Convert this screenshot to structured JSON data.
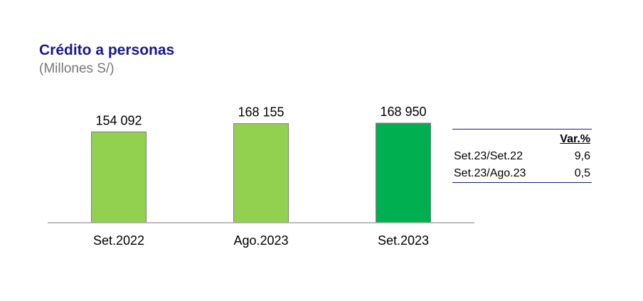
{
  "header": {
    "title": "Crédito a personas",
    "subtitle": "(Millones S/)"
  },
  "chart_data": {
    "type": "bar",
    "title": "Crédito a personas",
    "subtitle": "(Millones S/)",
    "categories": [
      "Set.2022",
      "Ago.2023",
      "Set.2023"
    ],
    "values": [
      154092,
      168155,
      168950
    ],
    "value_labels": [
      "154 092",
      "168 155",
      "168 950"
    ],
    "bar_colors": [
      "#92d050",
      "#92d050",
      "#00b050"
    ],
    "grid": false,
    "legend": "none"
  },
  "var_table": {
    "header": "Var.%",
    "rows": [
      {
        "label": "Set.23/Set.22",
        "value": "9,6"
      },
      {
        "label": "Set.23/Ago.23",
        "value": "0,5"
      }
    ]
  },
  "colors": {
    "title": "#1a1a8c",
    "subtitle": "#777777",
    "axis": "#a6a6a6"
  }
}
